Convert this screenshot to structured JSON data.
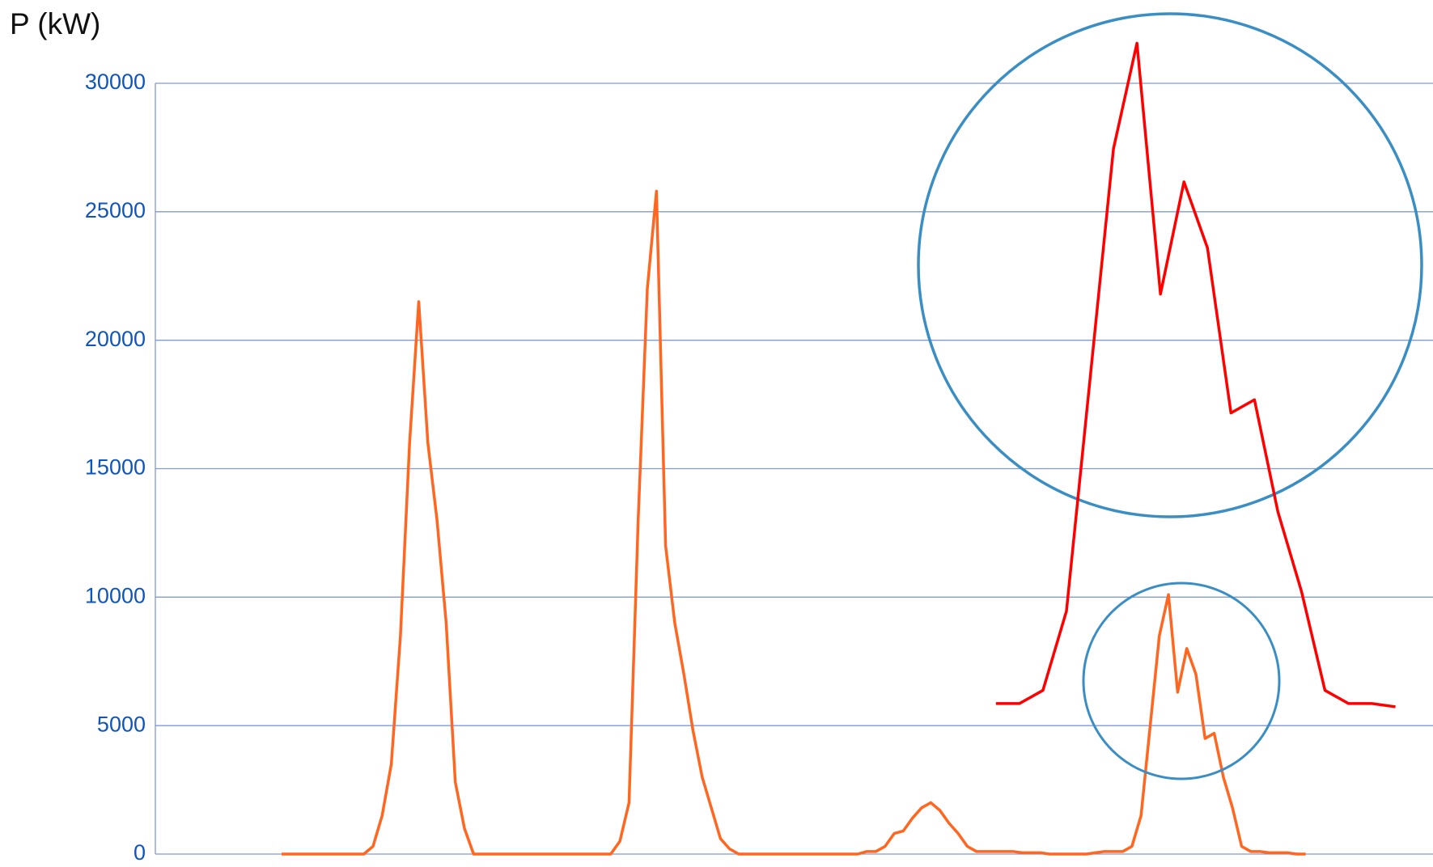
{
  "chart_data": {
    "type": "line",
    "y_label": "P (kW)",
    "series": [
      {
        "color": "#ff6620",
        "values": [
          0,
          0,
          0,
          0,
          0,
          0,
          0,
          0,
          0,
          0,
          300,
          1500,
          3500,
          8500,
          16000,
          21500,
          16000,
          13000,
          9000,
          2800,
          1000,
          0,
          0,
          0,
          0,
          0,
          0,
          0,
          0,
          0,
          0,
          0,
          0,
          0,
          0,
          0,
          0,
          500,
          2000,
          13000,
          22000,
          25800,
          12000,
          9000,
          7000,
          4800,
          3000,
          1800,
          600,
          200,
          0,
          0,
          0,
          0,
          0,
          0,
          0,
          0,
          0,
          0,
          0,
          0,
          0,
          0,
          100,
          100,
          300,
          800,
          900,
          1400,
          1800,
          2000,
          1700,
          1200,
          800,
          300,
          100,
          100,
          100,
          100,
          100,
          50,
          50,
          50,
          0,
          0,
          0,
          0,
          0,
          50,
          100,
          100,
          100,
          300,
          1500,
          5000,
          8500,
          10100,
          6300,
          8000,
          7000,
          4500,
          4700,
          3000,
          1800,
          300,
          100,
          100,
          50,
          50,
          50,
          0,
          0
        ]
      }
    ],
    "inset_color": "#ff0000",
    "circle_color": "#3b8ec4",
    "ylim": [
      0,
      30000
    ],
    "yticks": [
      0,
      5000,
      10000,
      15000,
      20000,
      25000,
      30000
    ],
    "grid": true
  }
}
